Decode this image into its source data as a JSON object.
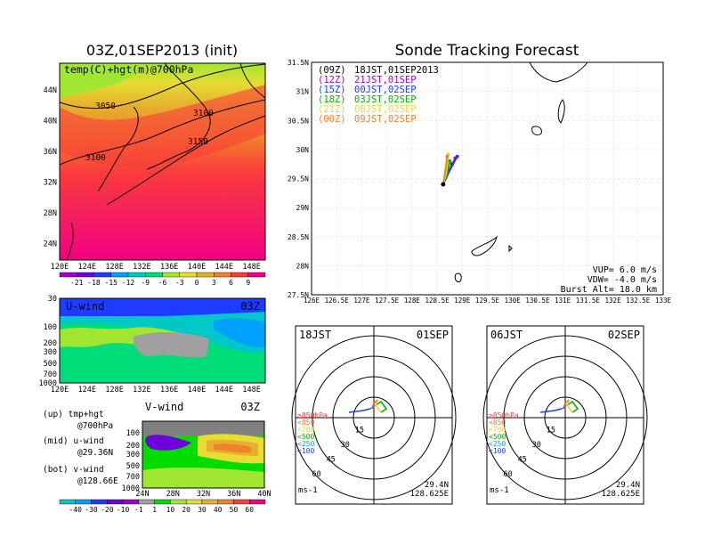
{
  "map_panel": {
    "title": "03Z,01SEP2013 (init)",
    "field_label": "temp(C)+hgt(m)@700hPa",
    "lon_ticks": [
      "120E",
      "124E",
      "128E",
      "132E",
      "136E",
      "140E",
      "144E",
      "148E"
    ],
    "lat_ticks": [
      "44N",
      "40N",
      "36N",
      "32N",
      "28N",
      "24N"
    ],
    "contour_labels": [
      "3050",
      "3100",
      "3150",
      "3100"
    ],
    "colorbar_labels": [
      "-21",
      "-18",
      "-15",
      "-12",
      "-9",
      "-6",
      "-3",
      "0",
      "3",
      "6",
      "9"
    ],
    "colorbar_colors": [
      "#a000c8",
      "#6e00dc",
      "#1e3cff",
      "#00a0ff",
      "#00c8c8",
      "#00dc78",
      "#a0e632",
      "#e6dc32",
      "#e6af2d",
      "#f08228",
      "#fa3c3c",
      "#f00082"
    ]
  },
  "uwind_panel": {
    "label": "U-wind",
    "time": "03Z",
    "pressure_ticks": [
      "30",
      "100",
      "200",
      "300",
      "500",
      "700",
      "1000"
    ],
    "lon_ticks": [
      "120E",
      "124E",
      "128E",
      "132E",
      "136E",
      "140E",
      "144E",
      "148E"
    ]
  },
  "vwind_panel": {
    "label": "V-wind",
    "time": "03Z",
    "pressure_ticks": [
      "100",
      "200",
      "300",
      "500",
      "700",
      "1000"
    ],
    "lat_ticks": [
      "24N",
      "28N",
      "32N",
      "36N",
      "40N"
    ],
    "colorbar_labels": [
      "-40",
      "-30",
      "-20",
      "-10",
      "-1",
      "1",
      "10",
      "20",
      "30",
      "40",
      "50",
      "60"
    ],
    "colorbar_colors": [
      "#00c8c8",
      "#00a0ff",
      "#1e3cff",
      "#6e00dc",
      "#a000c8",
      "#a0a0a0",
      "#00dc00",
      "#a0e632",
      "#e6dc32",
      "#e6af2d",
      "#f08228",
      "#fa3c3c",
      "#f00082"
    ]
  },
  "legend_notes": [
    {
      "a": "(up) tmp+hgt",
      "b": "@700hPa"
    },
    {
      "a": "(mid) u-wind",
      "b": "@29.36N"
    },
    {
      "a": "(bot) v-wind",
      "b": "@128.66E"
    }
  ],
  "tracking_panel": {
    "title": "Sonde Tracking Forecast",
    "lon_ticks": [
      "126E",
      "126.5E",
      "127E",
      "127.5E",
      "128E",
      "128.5E",
      "129E",
      "129.5E",
      "130E",
      "130.5E",
      "131E",
      "131.5E",
      "132E",
      "132.5E",
      "133E"
    ],
    "lat_ticks": [
      "31.5N",
      "31N",
      "30.5N",
      "30N",
      "29.5N",
      "29N",
      "28.5N",
      "28N",
      "27.5N"
    ],
    "legend": [
      {
        "code": "(09Z)",
        "time": "18JST,01SEP2013",
        "color": "#000000"
      },
      {
        "code": "(12Z)",
        "time": "21JST,01SEP",
        "color": "#a000c8"
      },
      {
        "code": "(15Z)",
        "time": "00JST,02SEP",
        "color": "#1e3cff"
      },
      {
        "code": "(18Z)",
        "time": "03JST,02SEP",
        "color": "#00b400"
      },
      {
        "code": "(21Z)",
        "time": "06JST,02SEP",
        "color": "#e6dc32"
      },
      {
        "code": "(00Z)",
        "time": "09JST,02SEP",
        "color": "#f08228"
      }
    ],
    "params": [
      "VUP=  6.0  m/s",
      "VDW= -4.0  m/s",
      "Burst Alt=  18.0  km"
    ]
  },
  "hodo_left": {
    "time": "18JST",
    "date": "01SEP",
    "ring_labels": [
      "15",
      "30",
      "45",
      "60"
    ],
    "levels": [
      {
        "text": "≥850hPa",
        "color": "#fa3c3c"
      },
      {
        "text": "<850",
        "color": "#f08228"
      },
      {
        "text": "<700",
        "color": "#e6dc32"
      },
      {
        "text": "<500",
        "color": "#00b400"
      },
      {
        "text": "<250",
        "color": "#00a0ff"
      },
      {
        "text": "<100",
        "color": "#1e3cff"
      }
    ],
    "unit": "ms-1",
    "lat": "29.4N",
    "lon": "128.625E"
  },
  "hodo_right": {
    "time": "06JST",
    "date": "02SEP",
    "ring_labels": [
      "15",
      "30",
      "45",
      "60"
    ],
    "levels": [
      {
        "text": "≥850hPa",
        "color": "#fa3c3c"
      },
      {
        "text": "<850",
        "color": "#f08228"
      },
      {
        "text": "<700",
        "color": "#e6dc32"
      },
      {
        "text": "<500",
        "color": "#00b400"
      },
      {
        "text": "<250",
        "color": "#00a0ff"
      },
      {
        "text": "<100",
        "color": "#1e3cff"
      }
    ],
    "unit": "ms-1",
    "lat": "29.4N",
    "lon": "128.625E"
  },
  "chart_data": [
    {
      "type": "heatmap",
      "title": "03Z,01SEP2013 (init)",
      "subtitle": "temp(C)+hgt(m)@700hPa",
      "xlim": [
        120,
        150
      ],
      "ylim": [
        22,
        47
      ],
      "contours": [
        3050,
        3100,
        3150
      ]
    },
    {
      "type": "heatmap",
      "title": "U-wind",
      "xlim": [
        120,
        150
      ],
      "pressure_range": [
        1000,
        30
      ]
    },
    {
      "type": "heatmap",
      "title": "V-wind",
      "xlim": [
        24,
        40
      ],
      "pressure_range": [
        1000,
        100
      ]
    },
    {
      "type": "line",
      "title": "Sonde Tracking Forecast",
      "xlim": [
        126,
        133
      ],
      "ylim": [
        27.5,
        31.5
      ],
      "series": [
        {
          "name": "(09Z)",
          "x": [
            128.62,
            128.7,
            128.8
          ],
          "y": [
            29.4,
            29.55,
            29.75
          ]
        },
        {
          "name": "(12Z)",
          "x": [
            128.62,
            128.72,
            128.86
          ],
          "y": [
            29.4,
            29.6,
            29.85
          ]
        },
        {
          "name": "(15Z)",
          "x": [
            128.62,
            128.74,
            128.9
          ],
          "y": [
            29.4,
            29.62,
            29.88
          ]
        },
        {
          "name": "(18Z)",
          "x": [
            128.62,
            128.7,
            128.75
          ],
          "y": [
            29.4,
            29.58,
            29.8
          ]
        },
        {
          "name": "(21Z)",
          "x": [
            128.62,
            128.68,
            128.72
          ],
          "y": [
            29.4,
            29.6,
            29.92
          ]
        },
        {
          "name": "(00Z)",
          "x": [
            128.62,
            128.66,
            128.7
          ],
          "y": [
            29.4,
            29.62,
            29.88
          ]
        }
      ]
    },
    {
      "type": "scatter",
      "title": "18JST 01SEP",
      "rings": [
        15,
        30,
        45,
        60
      ]
    },
    {
      "type": "scatter",
      "title": "06JST 02SEP",
      "rings": [
        15,
        30,
        45,
        60
      ]
    }
  ]
}
